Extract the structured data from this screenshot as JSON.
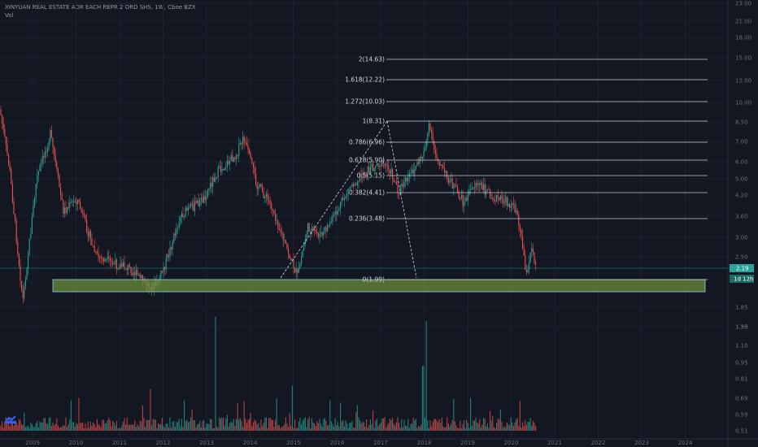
{
  "header": {
    "symbol": "XINYUAN REAL ESTATE ADR EACH REPR 2 ORD SHS, 1W, Cboe BZX",
    "indicator": "Vol"
  },
  "chart_data": {
    "type": "candlestick",
    "instrument": "XINYUAN REAL ESTATE ADR EACH REPR 2 ORD SHS",
    "timeframe": "1W",
    "exchange": "Cboe BZX",
    "x_axis_years": [
      "2009",
      "2010",
      "2011",
      "2012",
      "2013",
      "2014",
      "2015",
      "2016",
      "2017",
      "2018",
      "2019",
      "2020",
      "2021",
      "2022",
      "2023",
      "2024"
    ],
    "price_axis_labels": [
      "23.00",
      "21.00",
      "18.00",
      "15.00",
      "12.00",
      "10.00",
      "8.50",
      "7.00",
      "6.00",
      "5.00",
      "4.20",
      "3.60",
      "3.00",
      "2.50",
      "2.19",
      "1.85",
      "1.55"
    ],
    "volume_axis_labels": [
      "1.30",
      "1.10",
      "0.95",
      "0.81",
      "0.69",
      "0.59",
      "0.51"
    ],
    "last_price": "2.19",
    "countdown": "1d 12h",
    "fib_levels": [
      {
        "label": "2(14.63)"
      },
      {
        "label": "1.618(12.22)"
      },
      {
        "label": "1.272(10.03)"
      },
      {
        "label": "1(8.31)"
      },
      {
        "label": "0.786(6.96)"
      },
      {
        "label": "0.618(5.90)"
      },
      {
        "label": "0.5(5.15)"
      },
      {
        "label": "0.382(4.41)"
      },
      {
        "label": "0.236(3.48)"
      },
      {
        "label": "0(1.99)"
      }
    ],
    "colors": {
      "up": "#26a69a",
      "down": "#ef5350",
      "fib_line": "#c9cbd1",
      "support_box": "#6b8e3a",
      "price_tag": "#26a69a",
      "last_price_line": "#26a69a"
    }
  }
}
